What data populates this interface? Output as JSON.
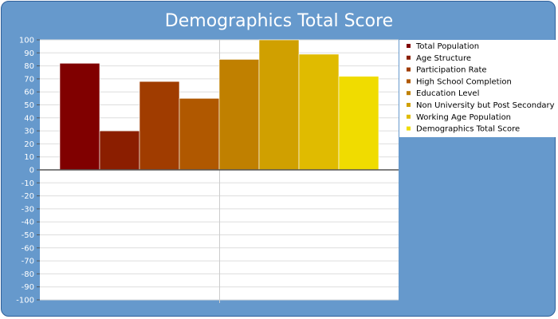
{
  "chart_data": {
    "type": "bar",
    "title": "Demographics Total Score",
    "xlabel": "",
    "ylabel": "",
    "ylim": [
      -100,
      100
    ],
    "ytick_step": 10,
    "grid": true,
    "legend_placement": "right",
    "series": [
      {
        "name": "Total Population",
        "value": 82,
        "color": "#800000"
      },
      {
        "name": "Age Structure",
        "value": 30,
        "color": "#8b1e00"
      },
      {
        "name": "Participation Rate",
        "value": 68,
        "color": "#a03c00"
      },
      {
        "name": "High School Completion",
        "value": 55,
        "color": "#b05800"
      },
      {
        "name": "Education Level",
        "value": 85,
        "color": "#c08000"
      },
      {
        "name": "Non University but Post Secondary",
        "value": 100,
        "color": "#d0a000"
      },
      {
        "name": "Working Age Population",
        "value": 89,
        "color": "#e0bb00"
      },
      {
        "name": "Demographics Total Score",
        "value": 72,
        "color": "#f0dc00"
      }
    ]
  }
}
